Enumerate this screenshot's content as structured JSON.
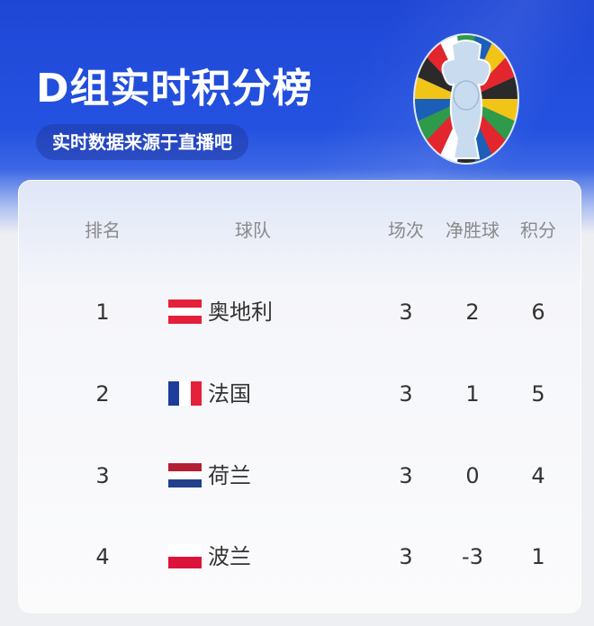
{
  "header": {
    "title": "D组实时积分榜",
    "subtitle": "实时数据来源于直播吧",
    "logo": "euro-2024-trophy-logo"
  },
  "table": {
    "columns": [
      "排名",
      "球队",
      "场次",
      "净胜球",
      "积分"
    ],
    "rows": [
      {
        "rank": "1",
        "team": "奥地利",
        "played": "3",
        "gd": "2",
        "pts": "6",
        "flag": [
          "#e5203a",
          "#ffffff",
          "#e5203a"
        ],
        "flag_dir": "horizontal"
      },
      {
        "rank": "2",
        "team": "法国",
        "played": "3",
        "gd": "1",
        "pts": "5",
        "flag": [
          "#1d3c9c",
          "#ffffff",
          "#e5203a"
        ],
        "flag_dir": "vertical"
      },
      {
        "rank": "3",
        "team": "荷兰",
        "played": "3",
        "gd": "0",
        "pts": "4",
        "flag": [
          "#b32035",
          "#ffffff",
          "#22408c"
        ],
        "flag_dir": "horizontal"
      },
      {
        "rank": "4",
        "team": "波兰",
        "played": "3",
        "gd": "-3",
        "pts": "1",
        "flag": [
          "#ffffff",
          "#dc143c"
        ],
        "flag_dir": "horizontal"
      }
    ]
  }
}
